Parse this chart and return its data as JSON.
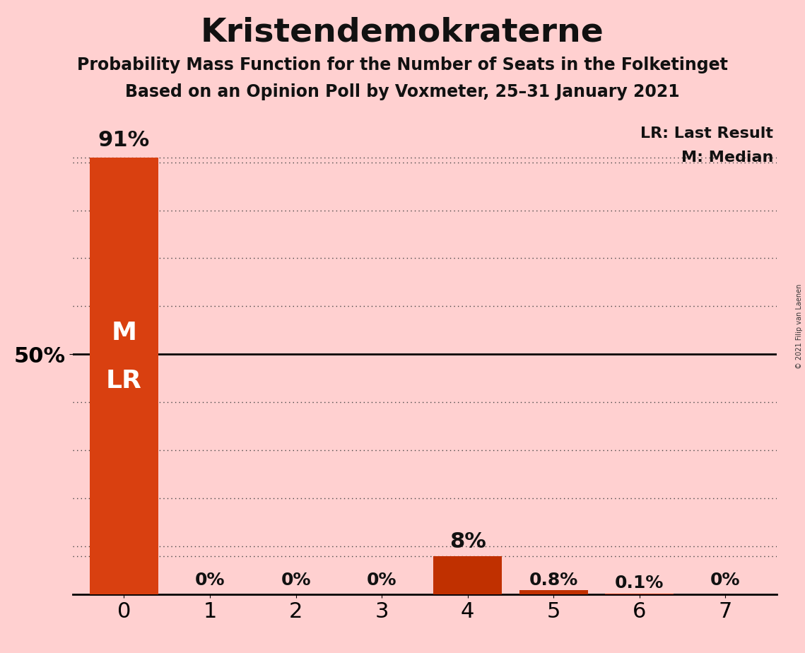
{
  "title": "Kristendemokraterne",
  "subtitle1": "Probability Mass Function for the Number of Seats in the Folketinget",
  "subtitle2": "Based on an Opinion Poll by Voxmeter, 25–31 January 2021",
  "copyright": "© 2021 Filip van Laenen",
  "categories": [
    0,
    1,
    2,
    3,
    4,
    5,
    6,
    7
  ],
  "values": [
    91.0,
    0.0,
    0.0,
    0.0,
    8.0,
    0.8,
    0.1,
    0.0
  ],
  "bar_labels": [
    "91%",
    "0%",
    "0%",
    "0%",
    "8%",
    "0.8%",
    "0.1%",
    "0%"
  ],
  "background_color": "#ffd0d0",
  "bar_color_large": "#d94010",
  "bar_color_small": "#c03000",
  "median_label": "M",
  "last_result_label": "LR",
  "legend_lr": "LR: Last Result",
  "legend_m": "M: Median",
  "ylim": [
    0,
    100
  ],
  "ylabel_50": "50%",
  "title_fontsize": 34,
  "subtitle_fontsize": 17,
  "bar_label_fontsize_large": 22,
  "bar_label_fontsize_small": 18,
  "ytick_fontsize": 22,
  "xtick_fontsize": 22,
  "inside_label_fontsize": 26,
  "legend_fontsize": 16,
  "dotted_line_color": "#444444",
  "solid_line_color": "#000000",
  "inside_label_color": "#ffffff",
  "copyright_color": "#333333"
}
